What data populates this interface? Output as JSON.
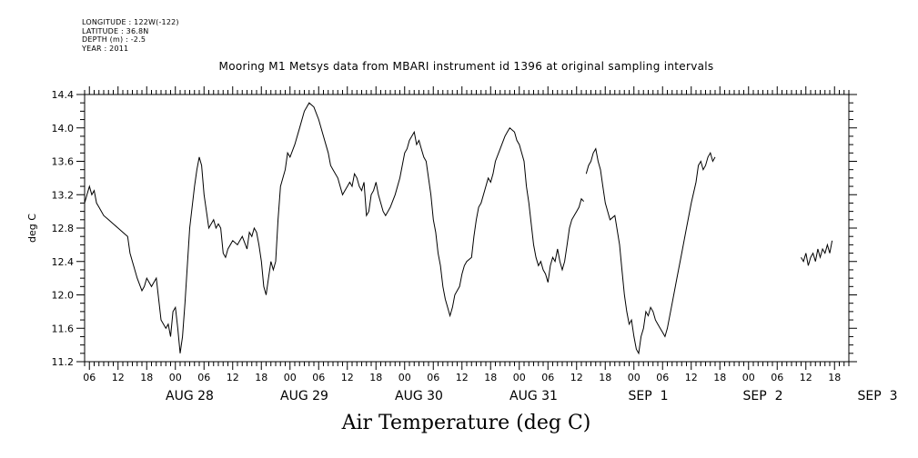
{
  "meta": {
    "longitude": "LONGITUDE : 122W(-122)",
    "latitude": "LATITUDE : 36.8N",
    "depth": "DEPTH (m) : -2.5",
    "year": "YEAR : 2011"
  },
  "chart_data": {
    "type": "line",
    "title": "Mooring M1 Metsys data from MBARI instrument id 1396 at original sampling intervals",
    "xlabel": "Air Temperature (deg C)",
    "ylabel": "deg C",
    "ylim": [
      11.2,
      14.4
    ],
    "y_ticks": [
      "11.2",
      "11.6",
      "12.0",
      "12.4",
      "12.8",
      "13.2",
      "13.6",
      "14.0",
      "14.4"
    ],
    "xlim_hours": [
      -19,
      141
    ],
    "x_hour_ticks": [
      "00",
      "06",
      "12",
      "18"
    ],
    "x_dates": [
      "AUG 28",
      "AUG 29",
      "AUG 30",
      "AUG 31",
      "SEP  1",
      "SEP  2",
      "SEP  3"
    ],
    "grid": false,
    "series": [
      {
        "segments": [
          [
            [
              -19,
              13.1
            ],
            [
              -18.5,
              13.2
            ],
            [
              -18,
              13.3
            ],
            [
              -17.5,
              13.2
            ],
            [
              -17,
              13.25
            ],
            [
              -16.5,
              13.1
            ],
            [
              -16,
              13.05
            ],
            [
              -15.5,
              13.0
            ],
            [
              -15,
              12.95
            ],
            [
              -14,
              12.9
            ],
            [
              -13,
              12.85
            ],
            [
              -12,
              12.8
            ],
            [
              -11,
              12.75
            ],
            [
              -10,
              12.7
            ],
            [
              -9.5,
              12.5
            ],
            [
              -9,
              12.4
            ],
            [
              -8,
              12.2
            ],
            [
              -7,
              12.05
            ],
            [
              -6.5,
              12.1
            ],
            [
              -6,
              12.2
            ],
            [
              -5,
              12.1
            ],
            [
              -4.5,
              12.15
            ],
            [
              -4,
              12.2
            ],
            [
              -3.5,
              11.95
            ],
            [
              -3,
              11.7
            ],
            [
              -2,
              11.6
            ],
            [
              -1.5,
              11.65
            ],
            [
              -1,
              11.5
            ],
            [
              -0.5,
              11.8
            ],
            [
              0,
              11.85
            ],
            [
              0.5,
              11.6
            ],
            [
              1,
              11.3
            ],
            [
              1.5,
              11.5
            ],
            [
              2,
              11.9
            ],
            [
              3,
              12.8
            ],
            [
              4,
              13.3
            ],
            [
              4.5,
              13.5
            ],
            [
              5,
              13.65
            ],
            [
              5.5,
              13.55
            ],
            [
              6,
              13.2
            ],
            [
              6.5,
              13.0
            ],
            [
              7,
              12.8
            ],
            [
              7.5,
              12.85
            ],
            [
              8,
              12.9
            ],
            [
              8.5,
              12.8
            ],
            [
              9,
              12.85
            ],
            [
              9.5,
              12.8
            ],
            [
              10,
              12.5
            ],
            [
              10.5,
              12.45
            ],
            [
              11,
              12.55
            ],
            [
              12,
              12.65
            ],
            [
              13,
              12.6
            ],
            [
              13.5,
              12.65
            ],
            [
              14,
              12.7
            ],
            [
              15,
              12.55
            ],
            [
              15.5,
              12.75
            ],
            [
              16,
              12.7
            ],
            [
              16.5,
              12.8
            ],
            [
              17,
              12.75
            ],
            [
              17.5,
              12.6
            ],
            [
              18,
              12.4
            ],
            [
              18.5,
              12.1
            ],
            [
              19,
              12.0
            ],
            [
              19.5,
              12.2
            ],
            [
              20,
              12.4
            ],
            [
              20.5,
              12.3
            ],
            [
              21,
              12.4
            ],
            [
              21.5,
              12.9
            ],
            [
              22,
              13.3
            ],
            [
              23,
              13.5
            ],
            [
              23.5,
              13.7
            ],
            [
              24,
              13.65
            ],
            [
              25,
              13.8
            ],
            [
              26,
              14.0
            ],
            [
              27,
              14.2
            ],
            [
              28,
              14.3
            ],
            [
              29,
              14.25
            ],
            [
              30,
              14.1
            ],
            [
              31,
              13.9
            ],
            [
              32,
              13.7
            ],
            [
              32.5,
              13.55
            ],
            [
              33,
              13.5
            ],
            [
              34,
              13.4
            ],
            [
              34.5,
              13.3
            ],
            [
              35,
              13.2
            ],
            [
              35.5,
              13.25
            ],
            [
              36,
              13.3
            ],
            [
              36.5,
              13.35
            ],
            [
              37,
              13.3
            ],
            [
              37.5,
              13.45
            ],
            [
              38,
              13.4
            ],
            [
              38.5,
              13.3
            ],
            [
              39,
              13.25
            ],
            [
              39.5,
              13.35
            ],
            [
              40,
              12.95
            ],
            [
              40.5,
              13.0
            ],
            [
              41,
              13.2
            ],
            [
              41.5,
              13.25
            ],
            [
              42,
              13.35
            ],
            [
              42.5,
              13.2
            ],
            [
              43,
              13.1
            ],
            [
              43.5,
              13.0
            ],
            [
              44,
              12.95
            ],
            [
              45,
              13.05
            ],
            [
              46,
              13.2
            ],
            [
              47,
              13.4
            ],
            [
              48,
              13.7
            ],
            [
              48.5,
              13.75
            ],
            [
              49,
              13.85
            ],
            [
              50,
              13.95
            ],
            [
              50.5,
              13.8
            ],
            [
              51,
              13.85
            ],
            [
              51.5,
              13.75
            ],
            [
              52,
              13.65
            ],
            [
              52.5,
              13.6
            ],
            [
              53,
              13.4
            ],
            [
              53.5,
              13.2
            ],
            [
              54,
              12.9
            ],
            [
              54.5,
              12.75
            ],
            [
              55,
              12.5
            ],
            [
              55.5,
              12.35
            ],
            [
              56,
              12.1
            ],
            [
              56.5,
              11.95
            ],
            [
              57,
              11.85
            ],
            [
              57.5,
              11.75
            ],
            [
              58,
              11.85
            ],
            [
              58.5,
              12.0
            ],
            [
              59,
              12.05
            ],
            [
              59.5,
              12.1
            ],
            [
              60,
              12.25
            ],
            [
              60.5,
              12.35
            ],
            [
              61,
              12.4
            ],
            [
              62,
              12.45
            ],
            [
              62.5,
              12.7
            ],
            [
              63,
              12.9
            ],
            [
              63.5,
              13.05
            ],
            [
              64,
              13.1
            ],
            [
              65,
              13.3
            ],
            [
              65.5,
              13.4
            ],
            [
              66,
              13.35
            ],
            [
              66.5,
              13.45
            ],
            [
              67,
              13.6
            ],
            [
              68,
              13.75
            ],
            [
              69,
              13.9
            ],
            [
              69.5,
              13.95
            ],
            [
              70,
              14.0
            ],
            [
              71,
              13.95
            ],
            [
              71.5,
              13.85
            ],
            [
              72,
              13.8
            ],
            [
              72.5,
              13.7
            ],
            [
              73,
              13.6
            ],
            [
              73.5,
              13.3
            ],
            [
              74,
              13.1
            ],
            [
              74.5,
              12.85
            ],
            [
              75,
              12.6
            ],
            [
              75.5,
              12.45
            ],
            [
              76,
              12.35
            ],
            [
              76.5,
              12.4
            ],
            [
              77,
              12.3
            ],
            [
              77.5,
              12.25
            ],
            [
              78,
              12.15
            ],
            [
              78.5,
              12.35
            ],
            [
              79,
              12.45
            ],
            [
              79.5,
              12.4
            ],
            [
              80,
              12.55
            ],
            [
              80.5,
              12.4
            ],
            [
              81,
              12.3
            ],
            [
              81.5,
              12.4
            ],
            [
              82,
              12.6
            ],
            [
              82.5,
              12.8
            ],
            [
              83,
              12.9
            ],
            [
              83.5,
              12.95
            ],
            [
              84,
              13.0
            ],
            [
              84.5,
              13.05
            ],
            [
              85,
              13.15
            ],
            [
              85.5,
              13.12
            ]
          ],
          [
            [
              86,
              13.45
            ],
            [
              86.5,
              13.55
            ],
            [
              87,
              13.6
            ],
            [
              87.5,
              13.7
            ],
            [
              88,
              13.75
            ],
            [
              88.5,
              13.6
            ],
            [
              89,
              13.5
            ],
            [
              89.5,
              13.3
            ],
            [
              90,
              13.1
            ],
            [
              90.5,
              13.0
            ],
            [
              91,
              12.9
            ],
            [
              92,
              12.95
            ],
            [
              93,
              12.6
            ],
            [
              93.5,
              12.3
            ],
            [
              94,
              12.0
            ],
            [
              94.5,
              11.8
            ],
            [
              95,
              11.65
            ],
            [
              95.5,
              11.7
            ],
            [
              96,
              11.5
            ],
            [
              96.5,
              11.35
            ],
            [
              97,
              11.3
            ],
            [
              97.5,
              11.5
            ],
            [
              98,
              11.6
            ],
            [
              98.5,
              11.8
            ],
            [
              99,
              11.75
            ],
            [
              99.5,
              11.85
            ],
            [
              100,
              11.8
            ],
            [
              100.5,
              11.7
            ],
            [
              101,
              11.65
            ],
            [
              101.5,
              11.6
            ],
            [
              102,
              11.55
            ],
            [
              102.5,
              11.5
            ],
            [
              103,
              11.6
            ],
            [
              104,
              11.9
            ],
            [
              105,
              12.2
            ],
            [
              106,
              12.5
            ],
            [
              107,
              12.8
            ],
            [
              108,
              13.1
            ],
            [
              109,
              13.35
            ],
            [
              109.5,
              13.55
            ],
            [
              110,
              13.6
            ],
            [
              110.5,
              13.5
            ],
            [
              111,
              13.55
            ],
            [
              111.5,
              13.65
            ],
            [
              112,
              13.7
            ],
            [
              112.5,
              13.6
            ],
            [
              113,
              13.65
            ]
          ],
          [
            [
              131,
              12.45
            ],
            [
              131.5,
              12.4
            ],
            [
              132,
              12.5
            ],
            [
              132.5,
              12.35
            ],
            [
              133,
              12.45
            ],
            [
              133.5,
              12.5
            ],
            [
              134,
              12.4
            ],
            [
              134.5,
              12.55
            ],
            [
              135,
              12.45
            ],
            [
              135.5,
              12.55
            ],
            [
              136,
              12.5
            ],
            [
              136.5,
              12.6
            ],
            [
              137,
              12.5
            ],
            [
              137.5,
              12.65
            ]
          ]
        ]
      }
    ]
  }
}
